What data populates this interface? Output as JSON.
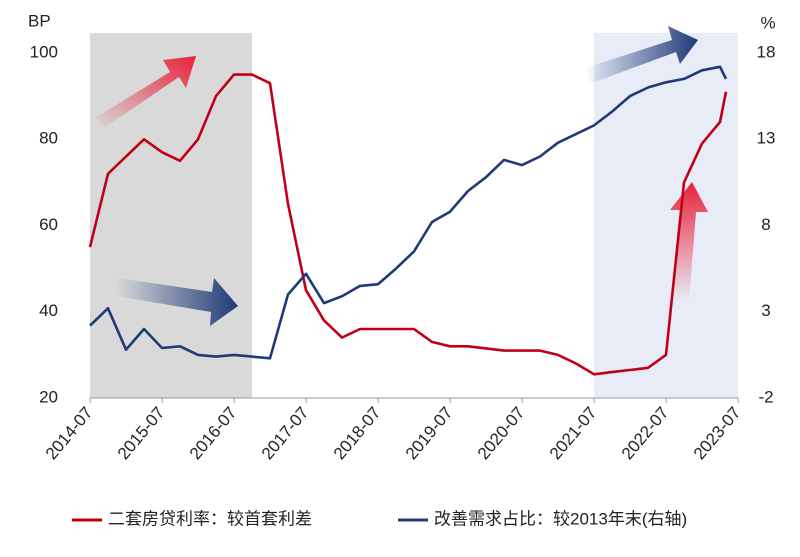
{
  "chart_data": {
    "type": "line",
    "y_unit": "BP",
    "y2_unit": "%",
    "xlim": [
      "2014-07",
      "2023-07"
    ],
    "xticks": [
      "2014-07",
      "2015-07",
      "2016-07",
      "2017-07",
      "2018-07",
      "2019-07",
      "2020-07",
      "2021-07",
      "2022-07",
      "2023-07"
    ],
    "ylim": [
      20,
      100
    ],
    "yticks": [
      20,
      40,
      60,
      80,
      100
    ],
    "y2lim": [
      -2,
      18
    ],
    "y2ticks": [
      -2,
      3,
      8,
      13,
      18
    ],
    "shaded_ranges": [
      {
        "from": "2014-07",
        "to": "2016-10",
        "color": "#d9d9d9"
      },
      {
        "from": "2021-07",
        "to": "2023-07",
        "color": "#e8ecf6"
      }
    ],
    "x": [
      "2014-07",
      "2014-10",
      "2015-01",
      "2015-04",
      "2015-07",
      "2015-10",
      "2016-01",
      "2016-04",
      "2016-07",
      "2016-10",
      "2017-01",
      "2017-04",
      "2017-07",
      "2017-10",
      "2018-01",
      "2018-04",
      "2018-07",
      "2018-10",
      "2019-01",
      "2019-04",
      "2019-07",
      "2019-10",
      "2020-01",
      "2020-04",
      "2020-07",
      "2020-10",
      "2021-01",
      "2021-04",
      "2021-07",
      "2021-10",
      "2022-01",
      "2022-04",
      "2022-07",
      "2022-10",
      "2023-01",
      "2023-04",
      "2023-05"
    ],
    "series": [
      {
        "name": "二套房贷利率：较首套利差",
        "color": "#c00018",
        "values": [
          55,
          72,
          76,
          80,
          77,
          75,
          80,
          90,
          95,
          95,
          93,
          65,
          45,
          38,
          34,
          36,
          36,
          36,
          36,
          33,
          32,
          32,
          31.5,
          31,
          31,
          31,
          30,
          28,
          25.5,
          26,
          26.5,
          27,
          30,
          70,
          79,
          84,
          91
        ]
      },
      {
        "name": "改善需求占比：较2013年末(右轴)",
        "color": "#1f3a78",
        "axis": "y2",
        "values": [
          2.2,
          3.2,
          0.8,
          2.0,
          0.9,
          1.0,
          0.5,
          0.4,
          0.5,
          0.4,
          0.3,
          4.0,
          5.2,
          3.5,
          3.9,
          4.5,
          4.6,
          5.5,
          6.5,
          8.2,
          8.8,
          10.0,
          10.8,
          11.8,
          11.5,
          12.0,
          12.8,
          13.3,
          13.8,
          14.6,
          15.5,
          16.0,
          16.3,
          16.5,
          17.0,
          17.2,
          16.5
        ]
      }
    ]
  }
}
